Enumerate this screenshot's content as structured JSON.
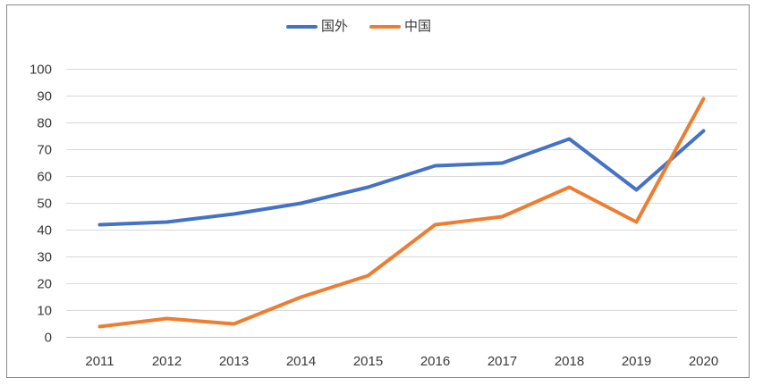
{
  "chart_data": {
    "type": "line",
    "title": "",
    "xlabel": "",
    "ylabel": "",
    "categories": [
      "2011",
      "2012",
      "2013",
      "2014",
      "2015",
      "2016",
      "2017",
      "2018",
      "2019",
      "2020"
    ],
    "series": [
      {
        "name": "国外",
        "color": "#4472C4",
        "values": [
          42,
          43,
          46,
          50,
          56,
          64,
          65,
          74,
          55,
          77
        ]
      },
      {
        "name": "中国",
        "color": "#ED7D31",
        "values": [
          4,
          7,
          5,
          15,
          23,
          42,
          45,
          56,
          43,
          89
        ]
      }
    ],
    "ylim": [
      0,
      100
    ],
    "yticks": [
      0,
      10,
      20,
      30,
      40,
      50,
      60,
      70,
      80,
      90,
      100
    ],
    "grid": true,
    "legend_position": "top",
    "style": {
      "gridline_color": "#D9D9D9",
      "axis_line_color": "#BFBFBF",
      "text_color": "#3A3A3A",
      "border_color": "#898989",
      "background": "#FFFFFF"
    }
  }
}
